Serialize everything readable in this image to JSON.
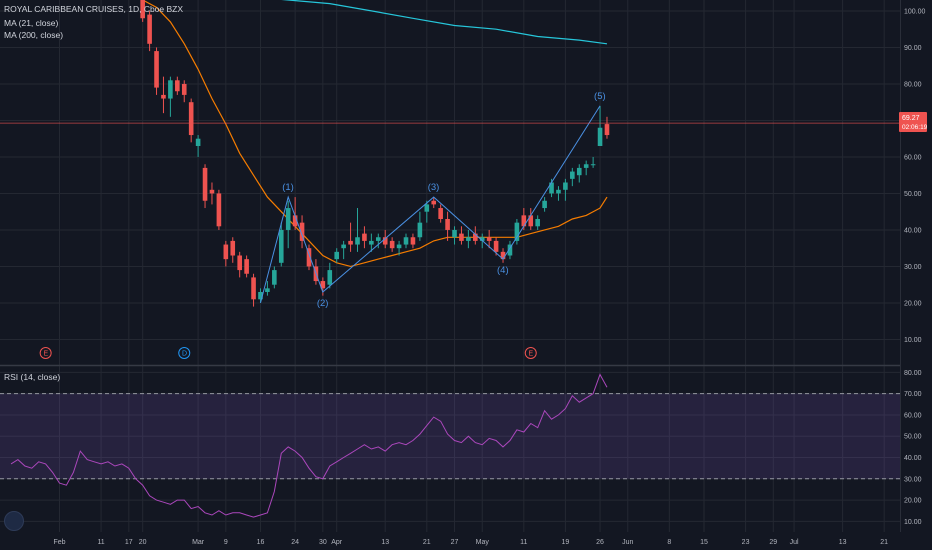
{
  "legend": {
    "title": "ROYAL CARIBBEAN CRUISES, 1D, Cboe BZX",
    "ma21": "MA (21, close)",
    "ma200": "MA (200, close)",
    "rsi": "RSI (14, close)"
  },
  "price_tag": {
    "value": "69.27",
    "time": "02:06:19"
  },
  "colors": {
    "up": "#26a69a",
    "down": "#ef5350",
    "ma21": "#f57c00",
    "ma200": "#26c6da",
    "rsi": "#ab47bc",
    "wave": "#4a90e2"
  },
  "chart_data": [
    {
      "type": "candlestick",
      "title": "ROYAL CARIBBEAN CRUISES, 1D, Cboe BZX",
      "y_ticks": [
        10,
        20,
        30,
        40,
        50,
        60,
        70,
        80,
        90,
        100
      ],
      "ylim": [
        3,
        103
      ],
      "grid": true,
      "last_price": 69.27,
      "x_ticks": [
        {
          "label": "Feb",
          "i": 7
        },
        {
          "label": "11",
          "i": 13
        },
        {
          "label": "17",
          "i": 17
        },
        {
          "label": "20",
          "i": 19
        },
        {
          "label": "Mar",
          "i": 27
        },
        {
          "label": "9",
          "i": 31
        },
        {
          "label": "16",
          "i": 36
        },
        {
          "label": "24",
          "i": 41
        },
        {
          "label": "30",
          "i": 45
        },
        {
          "label": "Apr",
          "i": 47
        },
        {
          "label": "13",
          "i": 54
        },
        {
          "label": "21",
          "i": 60
        },
        {
          "label": "27",
          "i": 64
        },
        {
          "label": "May",
          "i": 68
        },
        {
          "label": "11",
          "i": 74
        },
        {
          "label": "19",
          "i": 80
        },
        {
          "label": "26",
          "i": 85
        },
        {
          "label": "Jun",
          "i": 89
        },
        {
          "label": "8",
          "i": 95
        },
        {
          "label": "15",
          "i": 100
        },
        {
          "label": "23",
          "i": 106
        },
        {
          "label": "29",
          "i": 110
        },
        {
          "label": "Jul",
          "i": 113
        },
        {
          "label": "13",
          "i": 120
        },
        {
          "label": "21",
          "i": 126
        }
      ],
      "candles": [
        {
          "i": 19,
          "o": 104,
          "h": 104,
          "l": 97,
          "c": 98
        },
        {
          "i": 20,
          "o": 99,
          "h": 100,
          "l": 89,
          "c": 91
        },
        {
          "i": 21,
          "o": 89,
          "h": 90,
          "l": 77,
          "c": 79
        },
        {
          "i": 22,
          "o": 77,
          "h": 82,
          "l": 72,
          "c": 76
        },
        {
          "i": 23,
          "o": 76,
          "h": 82,
          "l": 71,
          "c": 81
        },
        {
          "i": 24,
          "o": 81,
          "h": 82,
          "l": 77,
          "c": 78
        },
        {
          "i": 25,
          "o": 80,
          "h": 81,
          "l": 75,
          "c": 77
        },
        {
          "i": 26,
          "o": 75,
          "h": 76,
          "l": 64,
          "c": 66
        },
        {
          "i": 27,
          "o": 63,
          "h": 66,
          "l": 60,
          "c": 65
        },
        {
          "i": 28,
          "o": 57,
          "h": 58,
          "l": 46,
          "c": 48
        },
        {
          "i": 29,
          "o": 51,
          "h": 53,
          "l": 47,
          "c": 50
        },
        {
          "i": 30,
          "o": 50,
          "h": 51,
          "l": 40,
          "c": 41
        },
        {
          "i": 31,
          "o": 36,
          "h": 37,
          "l": 30,
          "c": 32
        },
        {
          "i": 32,
          "o": 37,
          "h": 38,
          "l": 31,
          "c": 33
        },
        {
          "i": 33,
          "o": 33,
          "h": 34,
          "l": 27,
          "c": 29
        },
        {
          "i": 34,
          "o": 32,
          "h": 33,
          "l": 27,
          "c": 28
        },
        {
          "i": 35,
          "o": 27,
          "h": 28,
          "l": 19,
          "c": 21
        },
        {
          "i": 36,
          "o": 21,
          "h": 24,
          "l": 20,
          "c": 23
        },
        {
          "i": 37,
          "o": 23,
          "h": 26,
          "l": 22,
          "c": 24
        },
        {
          "i": 38,
          "o": 25,
          "h": 30,
          "l": 24,
          "c": 29
        },
        {
          "i": 39,
          "o": 31,
          "h": 42,
          "l": 30,
          "c": 40
        },
        {
          "i": 40,
          "o": 40,
          "h": 48,
          "l": 35,
          "c": 46
        },
        {
          "i": 41,
          "o": 44,
          "h": 49,
          "l": 40,
          "c": 41
        },
        {
          "i": 42,
          "o": 42,
          "h": 44,
          "l": 35,
          "c": 37
        },
        {
          "i": 43,
          "o": 35,
          "h": 36,
          "l": 29,
          "c": 30
        },
        {
          "i": 44,
          "o": 30,
          "h": 32,
          "l": 25,
          "c": 26
        },
        {
          "i": 45,
          "o": 26,
          "h": 27,
          "l": 22,
          "c": 24
        },
        {
          "i": 46,
          "o": 25,
          "h": 31,
          "l": 24,
          "c": 29
        },
        {
          "i": 47,
          "o": 32,
          "h": 35,
          "l": 31,
          "c": 34
        },
        {
          "i": 48,
          "o": 35,
          "h": 37,
          "l": 32,
          "c": 36
        },
        {
          "i": 49,
          "o": 37,
          "h": 42,
          "l": 34,
          "c": 36
        },
        {
          "i": 50,
          "o": 36,
          "h": 46,
          "l": 34,
          "c": 38
        },
        {
          "i": 51,
          "o": 39,
          "h": 41,
          "l": 35,
          "c": 37
        },
        {
          "i": 52,
          "o": 36,
          "h": 39,
          "l": 34,
          "c": 37
        },
        {
          "i": 53,
          "o": 37,
          "h": 39,
          "l": 35,
          "c": 38
        },
        {
          "i": 54,
          "o": 38,
          "h": 40,
          "l": 35,
          "c": 36
        },
        {
          "i": 55,
          "o": 37,
          "h": 38,
          "l": 34,
          "c": 35
        },
        {
          "i": 56,
          "o": 35,
          "h": 37,
          "l": 33,
          "c": 36
        },
        {
          "i": 57,
          "o": 36,
          "h": 39,
          "l": 35,
          "c": 38
        },
        {
          "i": 58,
          "o": 38,
          "h": 39,
          "l": 35,
          "c": 36
        },
        {
          "i": 59,
          "o": 38,
          "h": 45,
          "l": 37,
          "c": 42
        },
        {
          "i": 60,
          "o": 45,
          "h": 48,
          "l": 42,
          "c": 47
        },
        {
          "i": 61,
          "o": 48,
          "h": 49,
          "l": 46,
          "c": 47
        },
        {
          "i": 62,
          "o": 46,
          "h": 47,
          "l": 42,
          "c": 43
        },
        {
          "i": 63,
          "o": 43,
          "h": 45,
          "l": 37,
          "c": 40
        },
        {
          "i": 64,
          "o": 38,
          "h": 41,
          "l": 36,
          "c": 40
        },
        {
          "i": 65,
          "o": 39,
          "h": 41,
          "l": 36,
          "c": 37
        },
        {
          "i": 66,
          "o": 37,
          "h": 40,
          "l": 35,
          "c": 38
        },
        {
          "i": 67,
          "o": 39,
          "h": 41,
          "l": 36,
          "c": 37
        },
        {
          "i": 68,
          "o": 37,
          "h": 39,
          "l": 35,
          "c": 38
        },
        {
          "i": 69,
          "o": 38,
          "h": 40,
          "l": 35,
          "c": 37
        },
        {
          "i": 70,
          "o": 37,
          "h": 38,
          "l": 33,
          "c": 34
        },
        {
          "i": 71,
          "o": 34,
          "h": 35,
          "l": 31,
          "c": 32
        },
        {
          "i": 72,
          "o": 33,
          "h": 37,
          "l": 32,
          "c": 36
        },
        {
          "i": 73,
          "o": 37,
          "h": 43,
          "l": 36,
          "c": 42
        },
        {
          "i": 74,
          "o": 44,
          "h": 46,
          "l": 40,
          "c": 41
        },
        {
          "i": 75,
          "o": 44,
          "h": 46,
          "l": 40,
          "c": 41
        },
        {
          "i": 76,
          "o": 41,
          "h": 44,
          "l": 40,
          "c": 43
        },
        {
          "i": 77,
          "o": 46,
          "h": 49,
          "l": 45,
          "c": 48
        },
        {
          "i": 78,
          "o": 50,
          "h": 54,
          "l": 49,
          "c": 53
        },
        {
          "i": 79,
          "o": 50,
          "h": 52,
          "l": 48,
          "c": 51
        },
        {
          "i": 80,
          "o": 51,
          "h": 54,
          "l": 48,
          "c": 53
        },
        {
          "i": 81,
          "o": 54,
          "h": 57,
          "l": 52,
          "c": 56
        },
        {
          "i": 82,
          "o": 55,
          "h": 58,
          "l": 53,
          "c": 57
        },
        {
          "i": 83,
          "o": 57,
          "h": 59,
          "l": 55,
          "c": 58
        },
        {
          "i": 84,
          "o": 58,
          "h": 60,
          "l": 57,
          "c": 58
        },
        {
          "i": 85,
          "o": 63,
          "h": 74,
          "l": 63,
          "c": 68
        },
        {
          "i": 86,
          "o": 69,
          "h": 71,
          "l": 65,
          "c": 66
        }
      ],
      "ma21": [
        [
          19,
          103
        ],
        [
          21,
          101
        ],
        [
          23,
          97
        ],
        [
          25,
          91
        ],
        [
          27,
          84
        ],
        [
          29,
          76
        ],
        [
          31,
          69
        ],
        [
          33,
          61
        ],
        [
          35,
          55
        ],
        [
          37,
          49
        ],
        [
          39,
          45
        ],
        [
          41,
          41
        ],
        [
          43,
          37
        ],
        [
          45,
          33
        ],
        [
          47,
          31
        ],
        [
          49,
          30
        ],
        [
          51,
          31
        ],
        [
          53,
          32
        ],
        [
          55,
          33
        ],
        [
          57,
          34
        ],
        [
          59,
          35
        ],
        [
          61,
          37
        ],
        [
          63,
          38
        ],
        [
          65,
          38
        ],
        [
          67,
          38
        ],
        [
          69,
          38
        ],
        [
          71,
          38
        ],
        [
          73,
          38
        ],
        [
          75,
          39
        ],
        [
          77,
          40
        ],
        [
          79,
          41
        ],
        [
          81,
          43
        ],
        [
          83,
          44
        ],
        [
          85,
          46
        ],
        [
          86,
          49
        ]
      ],
      "ma200": [
        [
          34,
          104
        ],
        [
          40,
          103
        ],
        [
          46,
          102
        ],
        [
          52,
          100
        ],
        [
          58,
          98
        ],
        [
          64,
          96
        ],
        [
          70,
          95
        ],
        [
          76,
          93
        ],
        [
          82,
          92
        ],
        [
          86,
          91
        ]
      ],
      "elliott_wave": [
        {
          "i": 36,
          "v": 20
        },
        {
          "i": 40,
          "v": 49,
          "label": "(1)"
        },
        {
          "i": 45,
          "v": 23,
          "label": "(2)"
        },
        {
          "i": 61,
          "v": 49,
          "label": "(3)"
        },
        {
          "i": 71,
          "v": 32,
          "label": "(4)"
        },
        {
          "i": 85,
          "v": 74,
          "label": "(5)"
        }
      ],
      "events": [
        {
          "i": 5,
          "label": "E",
          "color": "#ef5350"
        },
        {
          "i": 25,
          "label": "D",
          "color": "#2196f3"
        },
        {
          "i": 75,
          "label": "E",
          "color": "#ef5350"
        }
      ]
    },
    {
      "type": "line",
      "title": "RSI (14, close)",
      "y_ticks": [
        10,
        20,
        30,
        40,
        50,
        60,
        70,
        80
      ],
      "ylim": [
        5,
        83
      ],
      "bands": [
        30,
        70
      ],
      "values": [
        [
          0,
          37
        ],
        [
          1,
          39
        ],
        [
          2,
          36
        ],
        [
          3,
          35
        ],
        [
          4,
          38
        ],
        [
          5,
          37
        ],
        [
          6,
          33
        ],
        [
          7,
          28
        ],
        [
          8,
          27
        ],
        [
          9,
          33
        ],
        [
          10,
          43
        ],
        [
          11,
          39
        ],
        [
          12,
          38
        ],
        [
          13,
          37
        ],
        [
          14,
          38
        ],
        [
          15,
          36
        ],
        [
          16,
          37
        ],
        [
          17,
          35
        ],
        [
          18,
          30
        ],
        [
          19,
          27
        ],
        [
          20,
          22
        ],
        [
          21,
          20
        ],
        [
          22,
          19
        ],
        [
          23,
          18
        ],
        [
          24,
          20
        ],
        [
          25,
          20
        ],
        [
          26,
          16
        ],
        [
          27,
          17
        ],
        [
          28,
          14
        ],
        [
          29,
          13
        ],
        [
          30,
          15
        ],
        [
          31,
          13
        ],
        [
          32,
          14
        ],
        [
          33,
          14
        ],
        [
          34,
          13
        ],
        [
          35,
          12
        ],
        [
          36,
          13
        ],
        [
          37,
          14
        ],
        [
          38,
          24
        ],
        [
          39,
          42
        ],
        [
          40,
          45
        ],
        [
          41,
          43
        ],
        [
          42,
          40
        ],
        [
          43,
          35
        ],
        [
          44,
          31
        ],
        [
          45,
          30
        ],
        [
          46,
          36
        ],
        [
          47,
          38
        ],
        [
          48,
          40
        ],
        [
          49,
          42
        ],
        [
          50,
          44
        ],
        [
          51,
          46
        ],
        [
          52,
          44
        ],
        [
          53,
          45
        ],
        [
          54,
          43
        ],
        [
          55,
          46
        ],
        [
          56,
          47
        ],
        [
          57,
          46
        ],
        [
          58,
          48
        ],
        [
          59,
          51
        ],
        [
          60,
          55
        ],
        [
          61,
          59
        ],
        [
          62,
          57
        ],
        [
          63,
          51
        ],
        [
          64,
          48
        ],
        [
          65,
          47
        ],
        [
          66,
          50
        ],
        [
          67,
          47
        ],
        [
          68,
          46
        ],
        [
          69,
          49
        ],
        [
          70,
          48
        ],
        [
          71,
          45
        ],
        [
          72,
          48
        ],
        [
          73,
          53
        ],
        [
          74,
          52
        ],
        [
          75,
          56
        ],
        [
          76,
          54
        ],
        [
          77,
          62
        ],
        [
          78,
          58
        ],
        [
          79,
          60
        ],
        [
          80,
          63
        ],
        [
          81,
          69
        ],
        [
          82,
          66
        ],
        [
          83,
          68
        ],
        [
          84,
          70
        ],
        [
          85,
          79
        ],
        [
          86,
          73
        ]
      ]
    }
  ]
}
